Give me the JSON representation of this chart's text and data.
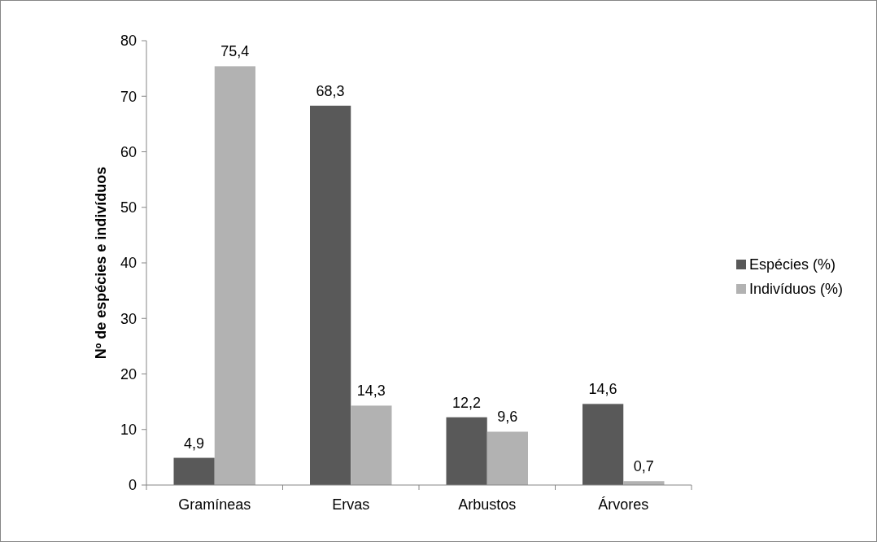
{
  "chart_data": {
    "type": "bar",
    "ylabel": "Nº de espécies e indivíduos",
    "categories": [
      "Gramíneas",
      "Ervas",
      "Arbustos",
      "Árvores"
    ],
    "series": [
      {
        "name": "Espécies (%)",
        "color": "#595959",
        "values": [
          4.9,
          68.3,
          12.2,
          14.6
        ],
        "value_labels": [
          "4,9",
          "68,3",
          "12,2",
          "14,6"
        ]
      },
      {
        "name": "Indivíduos (%)",
        "color": "#b2b2b2",
        "values": [
          75.4,
          14.3,
          9.6,
          0.7
        ],
        "value_labels": [
          "75,4",
          "14,3",
          "9,6",
          "0,7"
        ]
      }
    ],
    "ylim": [
      0,
      80
    ],
    "yticks": [
      0,
      10,
      20,
      30,
      40,
      50,
      60,
      70,
      80
    ],
    "legend": "right",
    "grid": false
  }
}
